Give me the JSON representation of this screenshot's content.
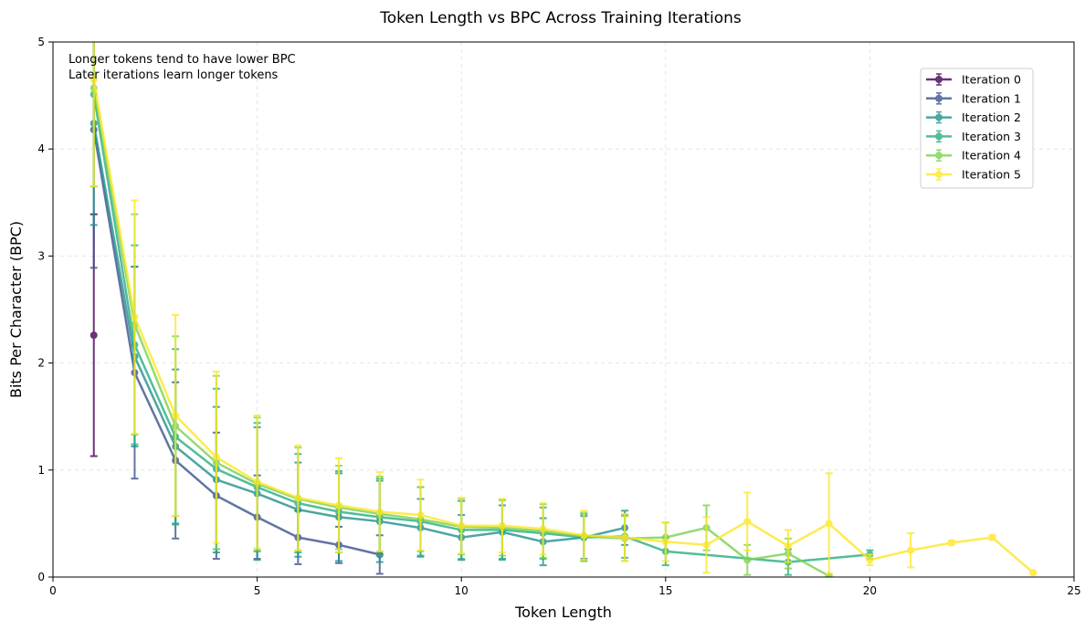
{
  "chart_data": {
    "type": "line",
    "title": "Token Length vs BPC Across Training Iterations",
    "xlabel": "Token Length",
    "ylabel": "Bits Per Character (BPC)",
    "xlim": [
      0,
      25
    ],
    "ylim": [
      0,
      5
    ],
    "xticks": [
      0,
      5,
      10,
      15,
      20,
      25
    ],
    "yticks": [
      0,
      1,
      2,
      3,
      4,
      5
    ],
    "grid": true,
    "legend_position": "upper right",
    "annotations": [
      "Longer tokens tend to have lower BPC",
      "Later iterations learn longer tokens"
    ],
    "series": [
      {
        "name": "Iteration 0",
        "color": "#440154",
        "points": [
          {
            "x": 1,
            "y": 2.26,
            "err": 1.13
          }
        ]
      },
      {
        "name": "Iteration 1",
        "color": "#3b528b",
        "points": [
          {
            "x": 1,
            "y": 4.18,
            "err": 1.29
          },
          {
            "x": 2,
            "y": 1.91,
            "err": 0.99
          },
          {
            "x": 3,
            "y": 1.09,
            "err": 0.73
          },
          {
            "x": 4,
            "y": 0.76,
            "err": 0.59
          },
          {
            "x": 5,
            "y": 0.56,
            "err": 0.39
          },
          {
            "x": 6,
            "y": 0.37,
            "err": 0.25
          },
          {
            "x": 7,
            "y": 0.3,
            "err": 0.17
          },
          {
            "x": 8,
            "y": 0.21,
            "err": 0.18
          }
        ]
      },
      {
        "name": "Iteration 2",
        "color": "#21918c",
        "points": [
          {
            "x": 1,
            "y": 4.24,
            "err": 0.95
          },
          {
            "x": 2,
            "y": 2.06,
            "err": 0.84
          },
          {
            "x": 3,
            "y": 1.22,
            "err": 0.72
          },
          {
            "x": 4,
            "y": 0.91,
            "err": 0.68
          },
          {
            "x": 5,
            "y": 0.78,
            "err": 0.62
          },
          {
            "x": 6,
            "y": 0.63,
            "err": 0.44
          },
          {
            "x": 7,
            "y": 0.56,
            "err": 0.41
          },
          {
            "x": 8,
            "y": 0.52,
            "err": 0.38
          },
          {
            "x": 9,
            "y": 0.46,
            "err": 0.27
          },
          {
            "x": 10,
            "y": 0.37,
            "err": 0.21
          },
          {
            "x": 11,
            "y": 0.42,
            "err": 0.25
          },
          {
            "x": 12,
            "y": 0.33,
            "err": 0.22
          },
          {
            "x": 13,
            "y": 0.37,
            "err": 0.2
          },
          {
            "x": 14,
            "y": 0.46,
            "err": 0.16
          }
        ]
      },
      {
        "name": "Iteration 3",
        "color": "#27ad81",
        "points": [
          {
            "x": 1,
            "y": 4.51,
            "err": 0.86
          },
          {
            "x": 2,
            "y": 2.17,
            "err": 0.93
          },
          {
            "x": 3,
            "y": 1.31,
            "err": 0.82
          },
          {
            "x": 4,
            "y": 1.01,
            "err": 0.75
          },
          {
            "x": 5,
            "y": 0.84,
            "err": 0.6
          },
          {
            "x": 6,
            "y": 0.69,
            "err": 0.46
          },
          {
            "x": 7,
            "y": 0.61,
            "err": 0.38
          },
          {
            "x": 8,
            "y": 0.56,
            "err": 0.36
          },
          {
            "x": 9,
            "y": 0.52,
            "err": 0.32
          },
          {
            "x": 10,
            "y": 0.44,
            "err": 0.27
          },
          {
            "x": 11,
            "y": 0.44,
            "err": 0.28
          },
          {
            "x": 12,
            "y": 0.41,
            "err": 0.24
          },
          {
            "x": 13,
            "y": 0.37,
            "err": 0.22
          },
          {
            "x": 14,
            "y": 0.38,
            "err": 0.2
          },
          {
            "x": 15,
            "y": 0.24,
            "err": 0.13
          },
          {
            "x": 18,
            "y": 0.14,
            "err": 0.12
          },
          {
            "x": 20,
            "y": 0.21,
            "err": 0.04
          }
        ]
      },
      {
        "name": "Iteration 4",
        "color": "#7ad151",
        "points": [
          {
            "x": 1,
            "y": 4.57,
            "err": 0.92
          },
          {
            "x": 2,
            "y": 2.36,
            "err": 1.03
          },
          {
            "x": 3,
            "y": 1.41,
            "err": 0.84
          },
          {
            "x": 4,
            "y": 1.07,
            "err": 0.81
          },
          {
            "x": 5,
            "y": 0.87,
            "err": 0.62
          },
          {
            "x": 6,
            "y": 0.73,
            "err": 0.48
          },
          {
            "x": 7,
            "y": 0.65,
            "err": 0.39
          },
          {
            "x": 8,
            "y": 0.59,
            "err": 0.35
          },
          {
            "x": 9,
            "y": 0.54,
            "err": 0.3
          },
          {
            "x": 10,
            "y": 0.47,
            "err": 0.26
          },
          {
            "x": 11,
            "y": 0.46,
            "err": 0.26
          },
          {
            "x": 12,
            "y": 0.43,
            "err": 0.25
          },
          {
            "x": 13,
            "y": 0.38,
            "err": 0.22
          },
          {
            "x": 14,
            "y": 0.36,
            "err": 0.21
          },
          {
            "x": 15,
            "y": 0.37,
            "err": 0.14
          },
          {
            "x": 16,
            "y": 0.46,
            "err": 0.21
          },
          {
            "x": 17,
            "y": 0.16,
            "err": 0.14
          },
          {
            "x": 18,
            "y": 0.22,
            "err": 0.14
          },
          {
            "x": 19,
            "y": 0.01,
            "err": 0.02
          }
        ]
      },
      {
        "name": "Iteration 5",
        "color": "#fde725",
        "points": [
          {
            "x": 1,
            "y": 4.65,
            "err": 1.0
          },
          {
            "x": 2,
            "y": 2.43,
            "err": 1.09
          },
          {
            "x": 3,
            "y": 1.51,
            "err": 0.94
          },
          {
            "x": 4,
            "y": 1.12,
            "err": 0.8
          },
          {
            "x": 5,
            "y": 0.89,
            "err": 0.62
          },
          {
            "x": 6,
            "y": 0.74,
            "err": 0.49
          },
          {
            "x": 7,
            "y": 0.67,
            "err": 0.44
          },
          {
            "x": 8,
            "y": 0.61,
            "err": 0.37
          },
          {
            "x": 9,
            "y": 0.58,
            "err": 0.33
          },
          {
            "x": 10,
            "y": 0.48,
            "err": 0.26
          },
          {
            "x": 11,
            "y": 0.48,
            "err": 0.25
          },
          {
            "x": 12,
            "y": 0.45,
            "err": 0.24
          },
          {
            "x": 13,
            "y": 0.39,
            "err": 0.23
          },
          {
            "x": 14,
            "y": 0.37,
            "err": 0.22
          },
          {
            "x": 15,
            "y": 0.33,
            "err": 0.18
          },
          {
            "x": 16,
            "y": 0.3,
            "err": 0.26
          },
          {
            "x": 17,
            "y": 0.52,
            "err": 0.27
          },
          {
            "x": 18,
            "y": 0.29,
            "err": 0.15
          },
          {
            "x": 19,
            "y": 0.5,
            "err": 0.47
          },
          {
            "x": 20,
            "y": 0.16,
            "err": 0.05
          },
          {
            "x": 21,
            "y": 0.25,
            "err": 0.16
          },
          {
            "x": 22,
            "y": 0.32,
            "err": 0.02
          },
          {
            "x": 23,
            "y": 0.37,
            "err": 0.02
          },
          {
            "x": 24,
            "y": 0.04,
            "err": 0.01
          }
        ]
      }
    ]
  }
}
